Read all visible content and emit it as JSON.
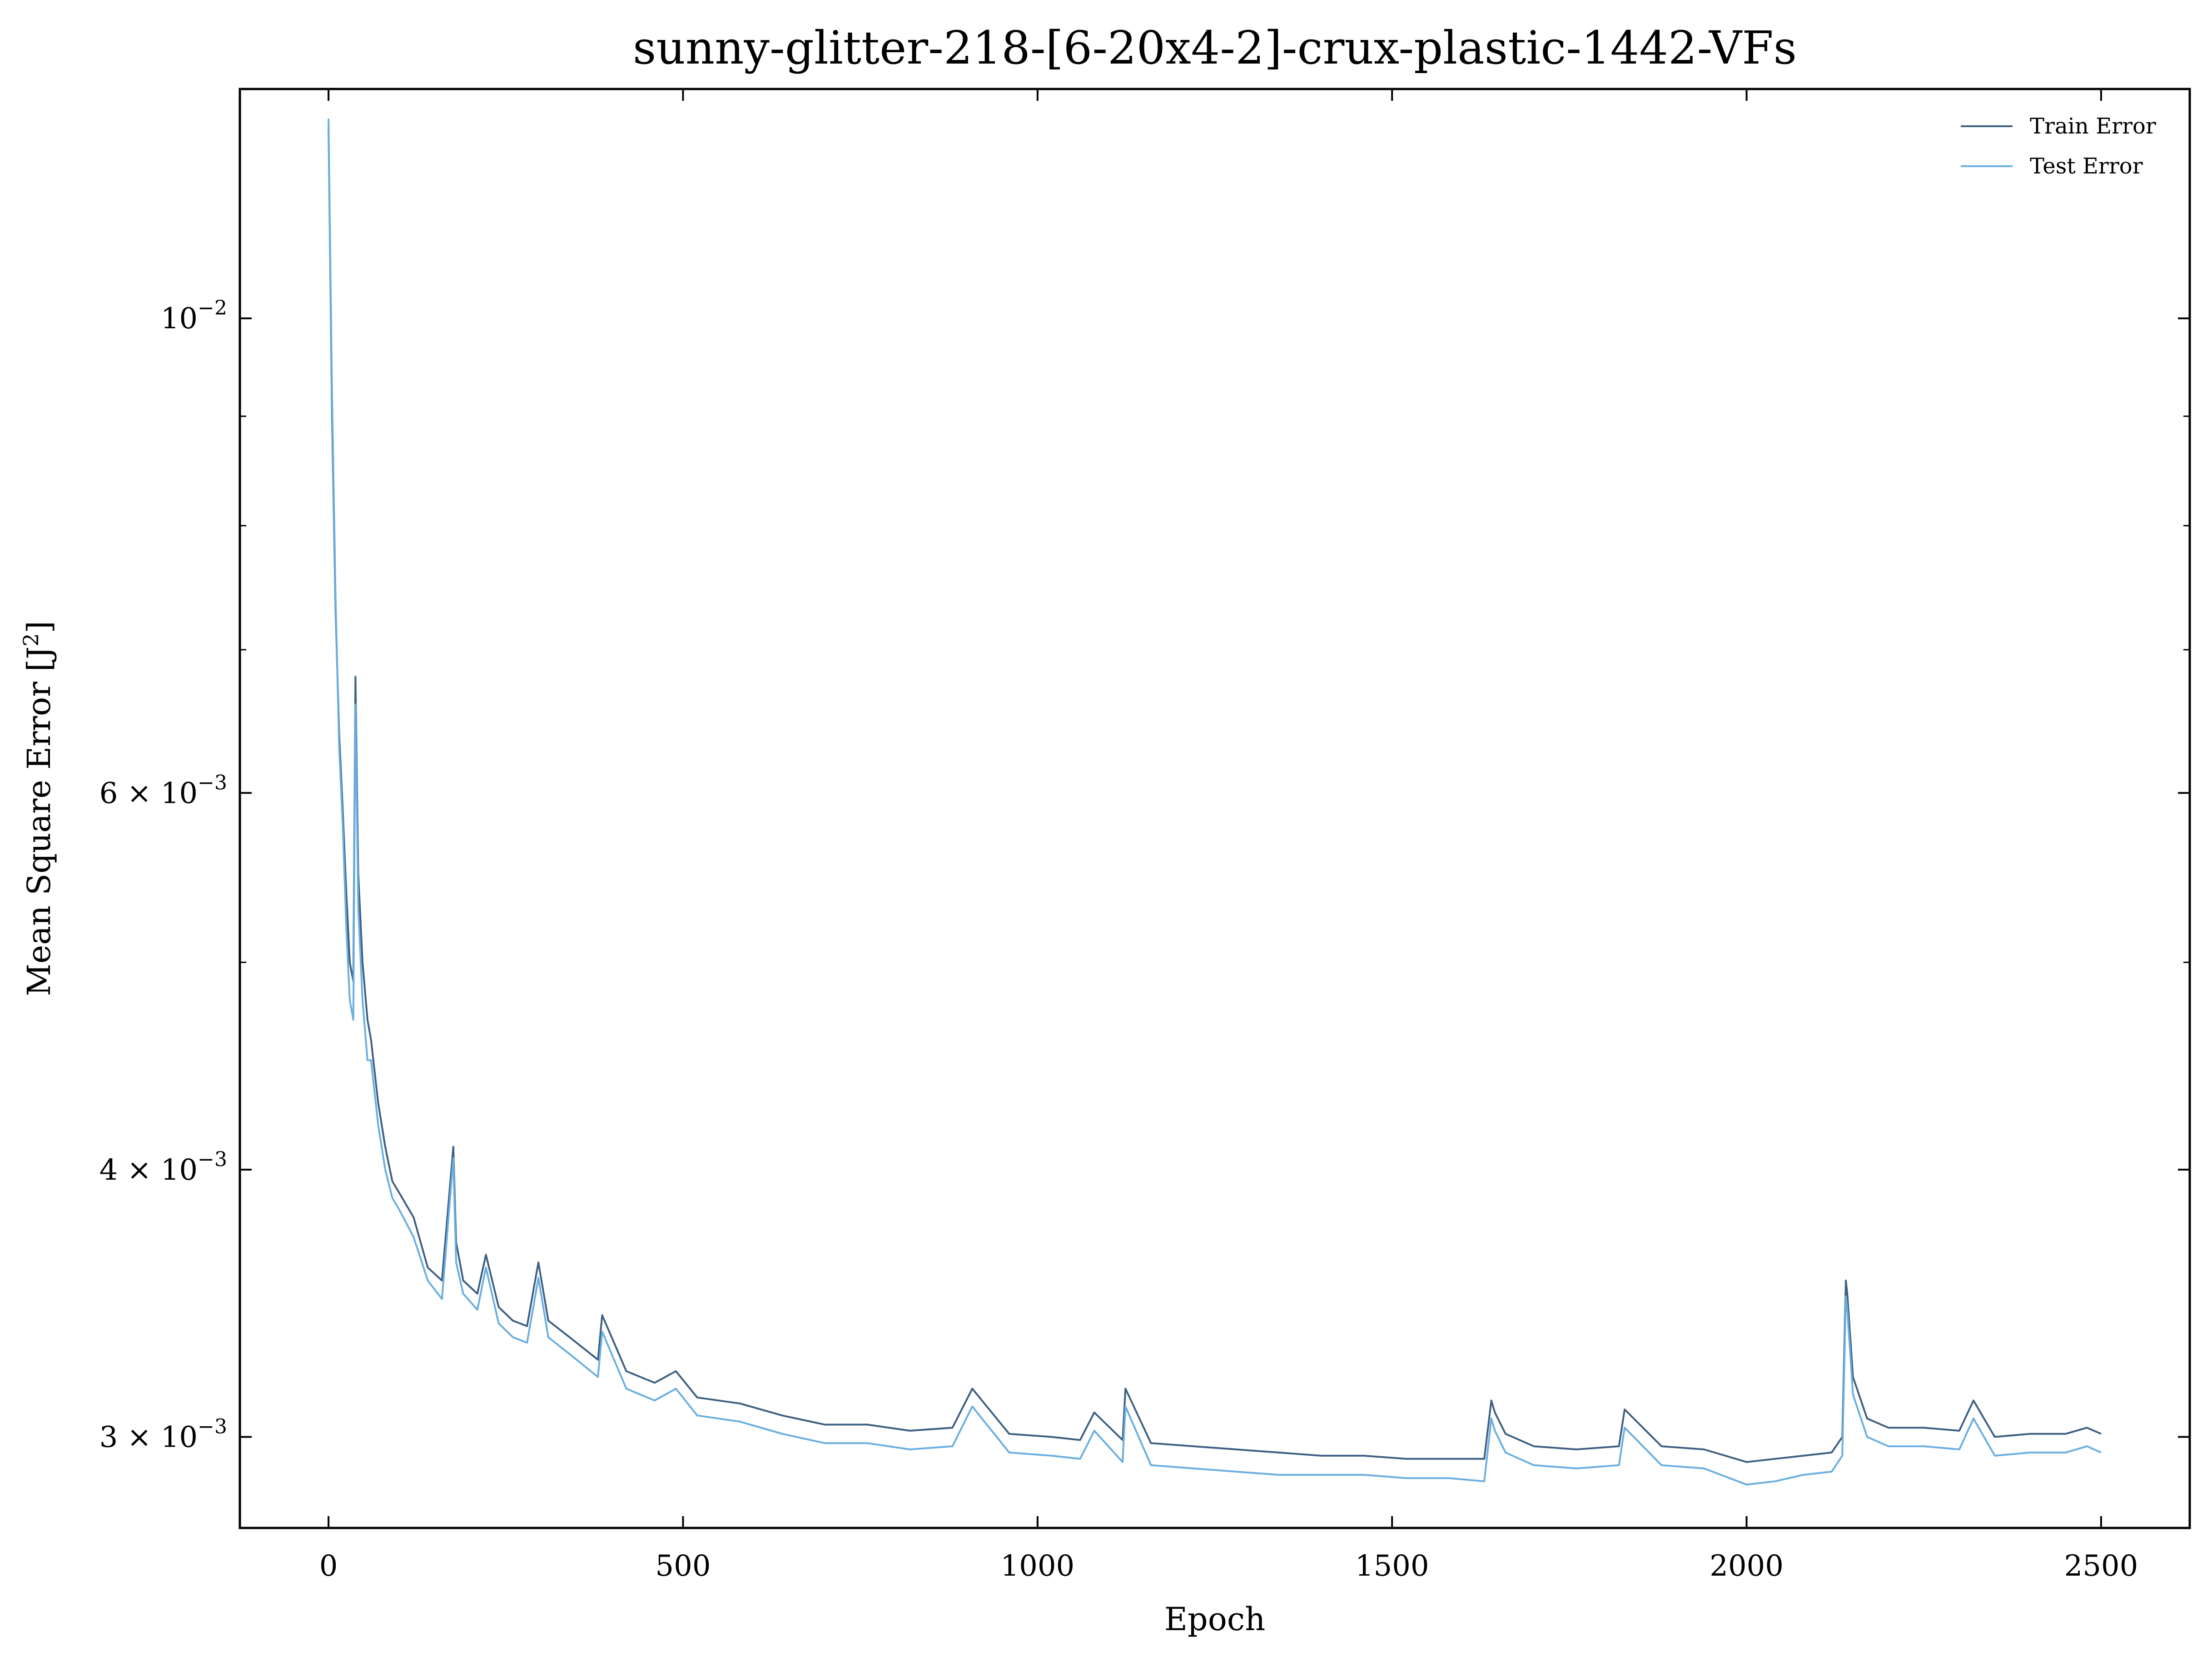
{
  "chart_data": {
    "type": "line",
    "title": "sunny-glitter-218-[6-20x4-2]-crux-plastic-1442-VFs",
    "xlabel": "Epoch",
    "ylabel": "Mean Square Error [J²]",
    "ylabel_main": "Mean Square Error [J",
    "ylabel_sup": "2",
    "ylabel_close": "]",
    "xlim": [
      -125,
      2625
    ],
    "ylim": [
      0.00272,
      0.0128
    ],
    "yscale": "log",
    "grid": false,
    "legend_position": "top-right",
    "x_ticks": [
      0,
      500,
      1000,
      1500,
      2000,
      2500
    ],
    "x_tick_labels": [
      "0",
      "500",
      "1000",
      "1500",
      "2000",
      "2500"
    ],
    "y_ticks": [
      {
        "value": 0.01,
        "mantissa": "10",
        "exponent": "−2"
      },
      {
        "value": 0.006,
        "mantissa": "6 × 10",
        "exponent": "−3"
      },
      {
        "value": 0.004,
        "mantissa": "4 × 10",
        "exponent": "−3"
      },
      {
        "value": 0.003,
        "mantissa": "3 × 10",
        "exponent": "−3"
      }
    ],
    "y_minor_ticks": [
      0.009,
      0.008,
      0.007,
      0.005
    ],
    "series": [
      {
        "name": "Train Error",
        "color": "#3d5f82",
        "x": [
          0,
          5,
          10,
          15,
          20,
          25,
          30,
          35,
          38,
          42,
          48,
          55,
          60,
          70,
          80,
          90,
          100,
          120,
          140,
          160,
          176,
          180,
          190,
          210,
          222,
          240,
          260,
          280,
          296,
          310,
          340,
          380,
          386,
          420,
          460,
          490,
          520,
          580,
          640,
          700,
          760,
          820,
          880,
          908,
          960,
          1020,
          1060,
          1080,
          1120,
          1124,
          1160,
          1220,
          1280,
          1340,
          1400,
          1460,
          1520,
          1580,
          1630,
          1640,
          1645,
          1660,
          1700,
          1760,
          1820,
          1828,
          1880,
          1940,
          2000,
          2040,
          2080,
          2120,
          2135,
          2140,
          2142,
          2150,
          2170,
          2200,
          2250,
          2300,
          2320,
          2350,
          2400,
          2450,
          2480,
          2500
        ],
        "y": [
          0.0123,
          0.009,
          0.0073,
          0.0064,
          0.0059,
          0.0054,
          0.005,
          0.0049,
          0.0068,
          0.0055,
          0.005,
          0.0047,
          0.0046,
          0.0043,
          0.0041,
          0.00395,
          0.0039,
          0.0038,
          0.0036,
          0.00355,
          0.0041,
          0.0037,
          0.00355,
          0.0035,
          0.00365,
          0.00345,
          0.0034,
          0.00338,
          0.00362,
          0.0034,
          0.00334,
          0.00326,
          0.00342,
          0.00322,
          0.00318,
          0.00322,
          0.00313,
          0.00311,
          0.00307,
          0.00304,
          0.00304,
          0.00302,
          0.00303,
          0.00316,
          0.00301,
          0.003,
          0.00299,
          0.00308,
          0.00299,
          0.00316,
          0.00298,
          0.00297,
          0.00296,
          0.00295,
          0.00294,
          0.00294,
          0.00293,
          0.00293,
          0.00293,
          0.00312,
          0.00308,
          0.00301,
          0.00297,
          0.00296,
          0.00297,
          0.00309,
          0.00297,
          0.00296,
          0.00292,
          0.00293,
          0.00294,
          0.00295,
          0.003,
          0.00355,
          0.0035,
          0.0032,
          0.00306,
          0.00303,
          0.00303,
          0.00302,
          0.00312,
          0.003,
          0.00301,
          0.00301,
          0.00303,
          0.00301
        ]
      },
      {
        "name": "Test Error",
        "color": "#6aaee0",
        "x": [
          0,
          5,
          10,
          15,
          20,
          25,
          30,
          35,
          38,
          42,
          48,
          55,
          60,
          70,
          80,
          90,
          100,
          120,
          140,
          160,
          176,
          180,
          190,
          210,
          222,
          240,
          260,
          280,
          296,
          310,
          340,
          380,
          386,
          420,
          460,
          490,
          520,
          580,
          640,
          700,
          760,
          820,
          880,
          908,
          960,
          1020,
          1060,
          1080,
          1120,
          1124,
          1160,
          1220,
          1280,
          1340,
          1400,
          1460,
          1520,
          1580,
          1630,
          1640,
          1645,
          1660,
          1700,
          1760,
          1820,
          1828,
          1880,
          1940,
          2000,
          2040,
          2080,
          2120,
          2135,
          2140,
          2142,
          2150,
          2170,
          2200,
          2250,
          2300,
          2320,
          2350,
          2400,
          2450,
          2480,
          2500
        ],
        "y": [
          0.0124,
          0.0092,
          0.0074,
          0.0063,
          0.0058,
          0.0052,
          0.0048,
          0.0047,
          0.0066,
          0.0053,
          0.0048,
          0.0045,
          0.0045,
          0.0042,
          0.004,
          0.00388,
          0.00383,
          0.00372,
          0.00355,
          0.00348,
          0.00405,
          0.00362,
          0.0035,
          0.00344,
          0.0036,
          0.00339,
          0.00334,
          0.00332,
          0.00356,
          0.00334,
          0.00328,
          0.0032,
          0.00336,
          0.00316,
          0.00312,
          0.00316,
          0.00307,
          0.00305,
          0.00301,
          0.00298,
          0.00298,
          0.00296,
          0.00297,
          0.0031,
          0.00295,
          0.00294,
          0.00293,
          0.00302,
          0.00292,
          0.0031,
          0.00291,
          0.0029,
          0.00289,
          0.00288,
          0.00288,
          0.00288,
          0.00287,
          0.00287,
          0.00286,
          0.00306,
          0.00302,
          0.00295,
          0.00291,
          0.0029,
          0.00291,
          0.00303,
          0.00291,
          0.0029,
          0.00285,
          0.00286,
          0.00288,
          0.00289,
          0.00294,
          0.00349,
          0.00344,
          0.00314,
          0.003,
          0.00297,
          0.00297,
          0.00296,
          0.00306,
          0.00294,
          0.00295,
          0.00295,
          0.00297,
          0.00295
        ]
      }
    ]
  }
}
